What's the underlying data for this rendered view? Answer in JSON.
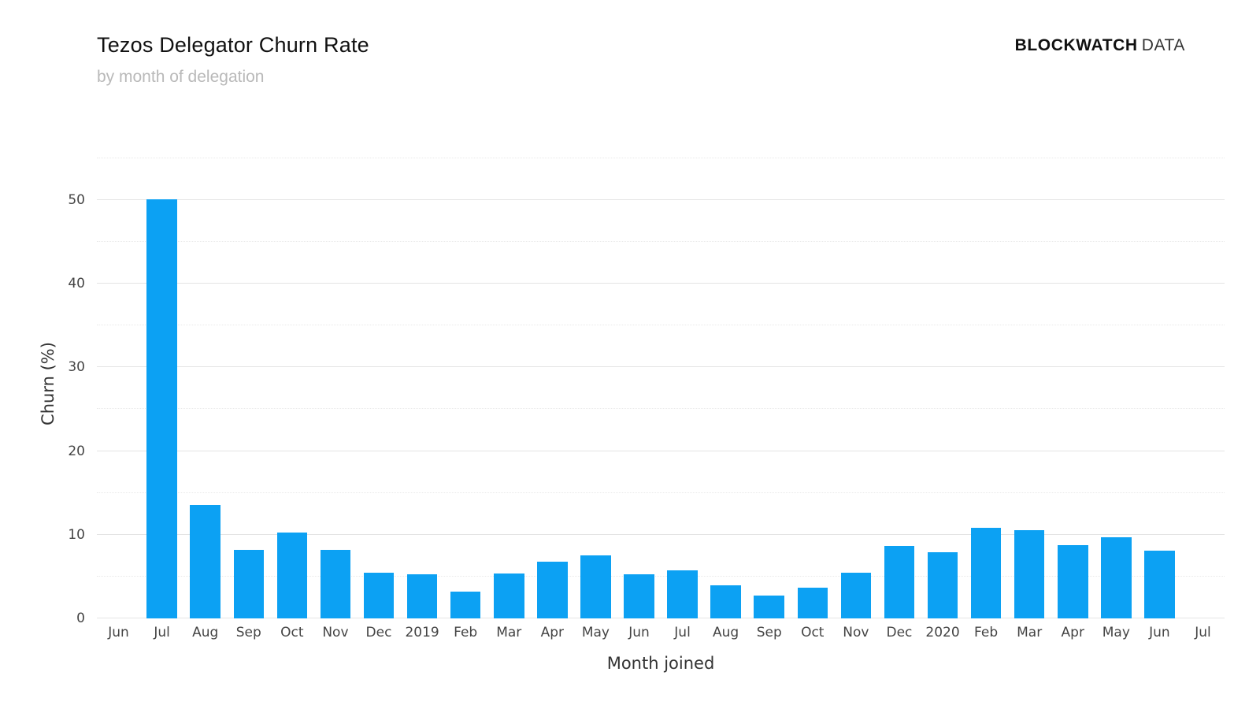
{
  "header": {
    "title": "Tezos Delegator Churn Rate",
    "subtitle": "by month of delegation",
    "brand": {
      "bold": "BLOCKWATCH",
      "light": "DATA"
    }
  },
  "chart_data": {
    "type": "bar",
    "title": "Tezos Delegator Churn Rate",
    "subtitle": "by month of delegation",
    "xlabel": "Month joined",
    "ylabel": "Churn (%)",
    "categories": [
      "Jun",
      "Jul",
      "Aug",
      "Sep",
      "Oct",
      "Nov",
      "Dec",
      "2019",
      "Feb",
      "Mar",
      "Apr",
      "May",
      "Jun",
      "Jul",
      "Aug",
      "Sep",
      "Oct",
      "Nov",
      "Dec",
      "2020",
      "Feb",
      "Mar",
      "Apr",
      "May",
      "Jun",
      "Jul"
    ],
    "values": [
      0,
      50.1,
      13.6,
      8.2,
      10.3,
      8.2,
      5.5,
      5.3,
      3.2,
      5.4,
      6.8,
      7.5,
      5.3,
      5.7,
      4.0,
      2.7,
      3.7,
      5.5,
      8.7,
      7.9,
      10.8,
      10.5,
      8.8,
      9.7,
      8.1,
      0
    ],
    "ylim": [
      0,
      56
    ],
    "ytick_major": [
      0,
      10,
      20,
      30,
      40,
      50
    ],
    "ytick_minor": [
      5,
      15,
      25,
      35,
      45,
      55
    ],
    "grid": true,
    "legend": false,
    "bar_color": "#0ca1f3",
    "grid_color": "#e4e4e4",
    "text_color": "#444444"
  }
}
